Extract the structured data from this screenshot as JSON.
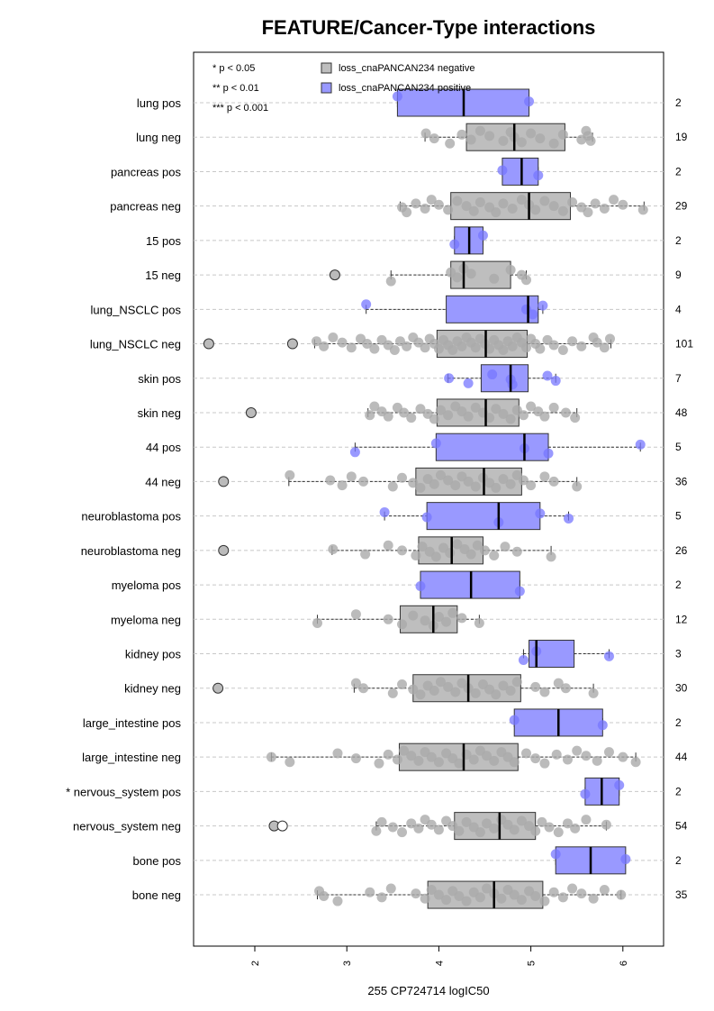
{
  "chart_data": {
    "type": "boxplot",
    "title": "FEATURE/Cancer-Type interactions",
    "xlabel": "255 CP724714 logIC50",
    "xlim": [
      1.3,
      6.4
    ],
    "xticks": [
      "2",
      "3",
      "4",
      "5",
      "6"
    ],
    "grid": "horizontal dashed",
    "legend_placement": "top-left",
    "legend": {
      "significance": [
        "* p < 0.05",
        "** p < 0.01",
        "*** p < 0.001"
      ],
      "series": [
        {
          "name": "loss_cnaPANCAN234 negative",
          "color": "#bebebe"
        },
        {
          "name": "loss_cnaPANCAN234 positive",
          "color": "#9999ff"
        }
      ]
    },
    "colors": {
      "negative_box": "#bebebe",
      "positive_box": "#9999ff",
      "negative_point": "#aaaaaa",
      "positive_point": "#7777ff"
    },
    "rows": [
      {
        "label": "lung pos",
        "count": "2",
        "status": "pos",
        "box": [
          3.55,
          4.27,
          4.98
        ],
        "whiskers": [
          3.55,
          4.98
        ],
        "outliers": [],
        "points": [
          3.55,
          4.98
        ]
      },
      {
        "label": "lung neg",
        "count": "19",
        "status": "neg",
        "box": [
          4.3,
          4.82,
          5.37
        ],
        "whiskers": [
          3.85,
          5.67
        ],
        "outliers": [],
        "points": [
          3.86,
          3.95,
          4.12,
          4.25,
          4.35,
          4.45,
          4.55,
          4.7,
          4.78,
          4.82,
          4.9,
          5.0,
          5.1,
          5.25,
          5.35,
          5.55,
          5.6,
          5.62,
          5.65
        ]
      },
      {
        "label": "pancreas pos",
        "count": "2",
        "status": "pos",
        "box": [
          4.69,
          4.9,
          5.08
        ],
        "whiskers": [
          4.69,
          5.08
        ],
        "outliers": [],
        "points": [
          4.69,
          5.08
        ]
      },
      {
        "label": "pancreas neg",
        "count": "29",
        "status": "neg",
        "box": [
          4.13,
          4.98,
          5.43
        ],
        "whiskers": [
          3.58,
          6.23
        ],
        "outliers": [],
        "points": [
          3.6,
          3.65,
          3.75,
          3.85,
          3.92,
          4.0,
          4.1,
          4.2,
          4.3,
          4.38,
          4.45,
          4.55,
          4.62,
          4.7,
          4.8,
          4.9,
          4.98,
          5.05,
          5.15,
          5.25,
          5.35,
          5.45,
          5.55,
          5.62,
          5.7,
          5.8,
          5.9,
          6.0,
          6.22
        ]
      },
      {
        "label": "15 pos",
        "count": "2",
        "status": "pos",
        "box": [
          4.17,
          4.33,
          4.48
        ],
        "whiskers": [
          4.17,
          4.48
        ],
        "outliers": [],
        "points": [
          4.17,
          4.48
        ]
      },
      {
        "label": "15 neg",
        "count": "9",
        "status": "neg",
        "box": [
          4.13,
          4.27,
          4.78
        ],
        "whiskers": [
          3.48,
          4.95
        ],
        "outliers": [
          2.87
        ],
        "points": [
          3.48,
          4.13,
          4.2,
          4.27,
          4.35,
          4.6,
          4.78,
          4.9,
          4.95
        ]
      },
      {
        "label": "lung_NSCLC pos",
        "count": "4",
        "status": "pos",
        "box": [
          4.08,
          4.97,
          5.08
        ],
        "whiskers": [
          3.21,
          5.13
        ],
        "outliers": [],
        "points": [
          3.21,
          4.95,
          5.02,
          5.13
        ]
      },
      {
        "label": "lung_NSCLC neg",
        "count": "101",
        "status": "neg",
        "box": [
          3.98,
          4.51,
          4.96
        ],
        "whiskers": [
          2.65,
          5.87
        ],
        "outliers": [
          1.5,
          2.41
        ],
        "points": [
          2.67,
          2.75,
          2.85,
          2.95,
          3.05,
          3.15,
          3.22,
          3.3,
          3.38,
          3.45,
          3.52,
          3.58,
          3.65,
          3.72,
          3.78,
          3.85,
          3.9,
          3.95,
          4.0,
          4.05,
          4.1,
          4.15,
          4.2,
          4.25,
          4.3,
          4.35,
          4.4,
          4.45,
          4.5,
          4.55,
          4.6,
          4.65,
          4.7,
          4.75,
          4.8,
          4.85,
          4.9,
          4.95,
          5.0,
          5.05,
          5.1,
          5.18,
          5.25,
          5.35,
          5.45,
          5.55,
          5.68,
          5.72,
          5.8,
          5.86
        ]
      },
      {
        "label": "skin pos",
        "count": "7",
        "status": "pos",
        "box": [
          4.46,
          4.78,
          4.97
        ],
        "whiskers": [
          4.1,
          5.27
        ],
        "outliers": [],
        "points": [
          4.11,
          4.32,
          4.58,
          4.78,
          4.8,
          5.18,
          5.27
        ]
      },
      {
        "label": "skin neg",
        "count": "48",
        "status": "neg",
        "box": [
          3.98,
          4.51,
          4.87
        ],
        "whiskers": [
          3.23,
          5.5
        ],
        "outliers": [
          1.96
        ],
        "points": [
          3.25,
          3.3,
          3.38,
          3.45,
          3.55,
          3.62,
          3.7,
          3.8,
          3.88,
          3.95,
          4.02,
          4.1,
          4.18,
          4.25,
          4.32,
          4.4,
          4.48,
          4.55,
          4.62,
          4.7,
          4.78,
          4.85,
          4.92,
          5.0,
          5.08,
          5.15,
          5.25,
          5.38,
          5.48
        ]
      },
      {
        "label": "44 pos",
        "count": "5",
        "status": "pos",
        "box": [
          3.97,
          4.93,
          5.19
        ],
        "whiskers": [
          3.09,
          6.19
        ],
        "outliers": [],
        "points": [
          3.09,
          3.97,
          4.93,
          5.19,
          6.19
        ]
      },
      {
        "label": "44 neg",
        "count": "36",
        "status": "neg",
        "box": [
          3.75,
          4.49,
          4.9
        ],
        "whiskers": [
          2.37,
          5.5
        ],
        "outliers": [
          1.66
        ],
        "points": [
          2.38,
          2.82,
          2.95,
          3.05,
          3.18,
          3.5,
          3.6,
          3.72,
          3.8,
          3.88,
          3.95,
          4.02,
          4.1,
          4.18,
          4.25,
          4.32,
          4.4,
          4.48,
          4.55,
          4.62,
          4.7,
          4.78,
          4.85,
          4.92,
          5.0,
          5.15,
          5.25,
          5.5
        ]
      },
      {
        "label": "neuroblastoma pos",
        "count": "5",
        "status": "pos",
        "box": [
          3.87,
          4.65,
          5.1
        ],
        "whiskers": [
          3.41,
          5.41
        ],
        "outliers": [],
        "points": [
          3.41,
          3.87,
          4.65,
          5.1,
          5.41
        ]
      },
      {
        "label": "neuroblastoma neg",
        "count": "26",
        "status": "neg",
        "box": [
          3.78,
          4.14,
          4.48
        ],
        "whiskers": [
          2.84,
          5.22
        ],
        "outliers": [
          1.66
        ],
        "points": [
          2.85,
          3.2,
          3.45,
          3.6,
          3.75,
          3.82,
          3.9,
          3.97,
          4.05,
          4.12,
          4.2,
          4.28,
          4.35,
          4.42,
          4.5,
          4.6,
          4.72,
          4.85,
          5.22
        ]
      },
      {
        "label": "myeloma pos",
        "count": "2",
        "status": "pos",
        "box": [
          3.8,
          4.35,
          4.88
        ],
        "whiskers": [
          3.8,
          4.88
        ],
        "outliers": [],
        "points": [
          3.8,
          4.88
        ]
      },
      {
        "label": "myeloma neg",
        "count": "12",
        "status": "neg",
        "box": [
          3.58,
          3.94,
          4.2
        ],
        "whiskers": [
          2.68,
          4.44
        ],
        "outliers": [],
        "points": [
          2.68,
          3.1,
          3.45,
          3.6,
          3.72,
          3.85,
          3.94,
          4.0,
          4.08,
          4.15,
          4.25,
          4.44
        ]
      },
      {
        "label": "kidney pos",
        "count": "3",
        "status": "pos",
        "box": [
          4.98,
          5.06,
          5.47
        ],
        "whiskers": [
          4.92,
          5.85
        ],
        "outliers": [],
        "points": [
          4.92,
          5.06,
          5.85
        ]
      },
      {
        "label": "kidney neg",
        "count": "30",
        "status": "neg",
        "box": [
          3.72,
          4.32,
          4.89
        ],
        "whiskers": [
          3.08,
          5.68
        ],
        "outliers": [
          1.6
        ],
        "points": [
          3.1,
          3.18,
          3.5,
          3.6,
          3.72,
          3.8,
          3.88,
          3.95,
          4.02,
          4.1,
          4.18,
          4.25,
          4.32,
          4.4,
          4.48,
          4.55,
          4.62,
          4.7,
          4.78,
          4.85,
          5.05,
          5.15,
          5.3,
          5.38,
          5.68
        ]
      },
      {
        "label": "large_intestine pos",
        "count": "2",
        "status": "pos",
        "box": [
          4.82,
          5.3,
          5.78
        ],
        "whiskers": [
          4.82,
          5.78
        ],
        "outliers": [],
        "points": [
          4.82,
          5.78
        ]
      },
      {
        "label": "large_intestine neg",
        "count": "44",
        "status": "neg",
        "box": [
          3.57,
          4.27,
          4.86
        ],
        "whiskers": [
          2.18,
          6.14
        ],
        "outliers": [],
        "points": [
          2.18,
          2.38,
          2.9,
          3.1,
          3.35,
          3.45,
          3.55,
          3.62,
          3.7,
          3.78,
          3.85,
          3.92,
          4.0,
          4.08,
          4.15,
          4.22,
          4.3,
          4.38,
          4.45,
          4.52,
          4.6,
          4.68,
          4.75,
          4.82,
          4.95,
          5.05,
          5.15,
          5.28,
          5.4,
          5.5,
          5.6,
          5.72,
          5.85,
          6.0,
          6.14
        ]
      },
      {
        "label": "* nervous_system pos",
        "count": "2",
        "status": "pos",
        "box": [
          5.59,
          5.77,
          5.96
        ],
        "whiskers": [
          5.59,
          5.96
        ],
        "outliers": [],
        "points": [
          5.59,
          5.96
        ]
      },
      {
        "label": "nervous_system neg",
        "count": "54",
        "status": "neg",
        "box": [
          4.17,
          4.66,
          5.05
        ],
        "whiskers": [
          3.32,
          5.82
        ],
        "outliers": [
          2.21,
          2.3
        ],
        "points": [
          3.32,
          3.38,
          3.5,
          3.6,
          3.7,
          3.78,
          3.85,
          3.92,
          4.0,
          4.08,
          4.15,
          4.22,
          4.3,
          4.38,
          4.45,
          4.52,
          4.6,
          4.68,
          4.75,
          4.82,
          4.9,
          4.98,
          5.05,
          5.12,
          5.2,
          5.3,
          5.4,
          5.48,
          5.6,
          5.82
        ]
      },
      {
        "label": "bone pos",
        "count": "2",
        "status": "pos",
        "box": [
          5.27,
          5.65,
          6.03
        ],
        "whiskers": [
          5.27,
          6.03
        ],
        "outliers": [],
        "points": [
          5.27,
          6.03
        ]
      },
      {
        "label": "bone neg",
        "count": "35",
        "status": "neg",
        "box": [
          3.88,
          4.6,
          5.13
        ],
        "whiskers": [
          2.68,
          5.98
        ],
        "outliers": [],
        "points": [
          2.7,
          2.75,
          2.9,
          3.25,
          3.38,
          3.48,
          3.75,
          3.85,
          3.92,
          4.0,
          4.08,
          4.15,
          4.22,
          4.3,
          4.38,
          4.45,
          4.52,
          4.6,
          4.68,
          4.75,
          4.82,
          4.9,
          4.98,
          5.05,
          5.15,
          5.25,
          5.35,
          5.45,
          5.55,
          5.68,
          5.8,
          5.98
        ]
      }
    ]
  }
}
